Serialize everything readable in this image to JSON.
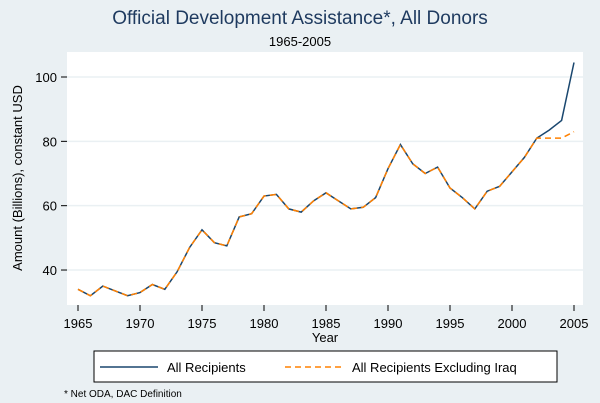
{
  "chart_data": {
    "type": "line",
    "title": "Official Development Assistance*, All Donors",
    "subtitle": "1965-2005",
    "xlabel": "Year",
    "ylabel": "Amount (Billions), constant USD",
    "xlim": [
      1965,
      2005
    ],
    "ylim": [
      29,
      108
    ],
    "xticks": [
      "1965",
      "1970",
      "1975",
      "1980",
      "1985",
      "1990",
      "1995",
      "2000",
      "2005"
    ],
    "yticks": [
      "40",
      "60",
      "80",
      "100"
    ],
    "grid": true,
    "legend_position": "bottom",
    "x": [
      1965,
      1966,
      1967,
      1968,
      1969,
      1970,
      1971,
      1972,
      1973,
      1974,
      1975,
      1976,
      1977,
      1978,
      1979,
      1980,
      1981,
      1982,
      1983,
      1984,
      1985,
      1986,
      1987,
      1988,
      1989,
      1990,
      1991,
      1992,
      1993,
      1994,
      1995,
      1996,
      1997,
      1998,
      1999,
      2000,
      2001,
      2002,
      2003,
      2004,
      2005
    ],
    "series": [
      {
        "name": "All Recipients",
        "color": "#1a476f",
        "style": "solid",
        "values": [
          34,
          32,
          35,
          33.5,
          32,
          33,
          35.5,
          34,
          39.5,
          47,
          52.5,
          48.5,
          47.5,
          56.5,
          57.5,
          63,
          63.5,
          59,
          58,
          61.5,
          64,
          61.5,
          59,
          59.5,
          62.5,
          71.5,
          79,
          73,
          70,
          72,
          65.5,
          62.5,
          59,
          64.5,
          66,
          70.5,
          75,
          81,
          83.5,
          86.5,
          104.5
        ]
      },
      {
        "name": "All Recipients Excluding Iraq",
        "color": "#ff8000",
        "style": "dashed",
        "values": [
          34,
          32,
          35,
          33.5,
          32,
          33,
          35.5,
          34,
          39.5,
          47,
          52.5,
          48.5,
          47.5,
          56.5,
          57.5,
          63,
          63.5,
          59,
          58,
          61.5,
          64,
          61.5,
          59,
          59.5,
          62.5,
          71.5,
          79,
          73,
          70,
          72,
          65.5,
          62.5,
          59,
          64.5,
          66,
          70.5,
          75,
          81,
          81,
          81,
          83
        ]
      }
    ],
    "footnote": "* Net ODA, DAC Definition"
  }
}
